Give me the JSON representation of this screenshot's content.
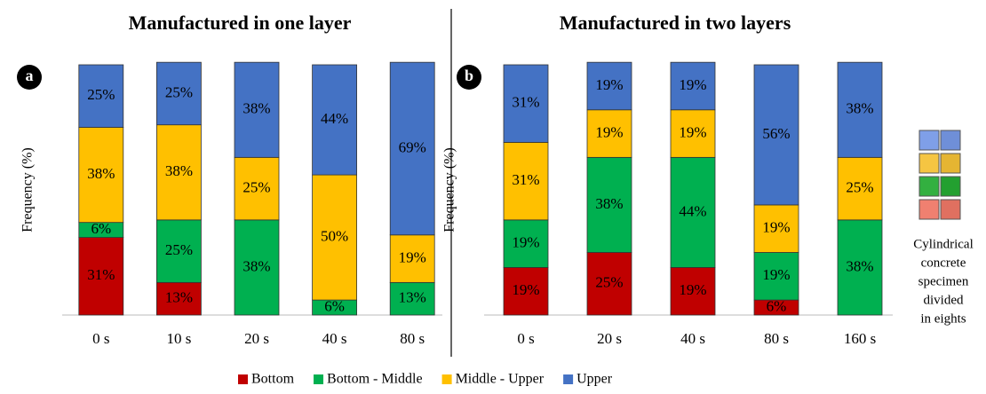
{
  "chart_data": [
    {
      "type": "stacked-bar",
      "panel_label": "a",
      "title": "Manufactured in one layer",
      "y_label": "Frequency  (%)",
      "categories": [
        "0 s",
        "10 s",
        "20 s",
        "40 s",
        "80 s"
      ],
      "ylim": [
        0,
        100
      ],
      "series": [
        {
          "name": "Bottom",
          "color": "#c00000",
          "values": [
            31,
            13,
            0,
            0,
            0
          ],
          "value_labels": [
            "31%",
            "13%",
            null,
            null,
            null
          ]
        },
        {
          "name": "Bottom - Middle",
          "color": "#00b050",
          "values": [
            6,
            25,
            38,
            6,
            13
          ],
          "value_labels": [
            "6%",
            "25%",
            "38%",
            "6%",
            "13%"
          ]
        },
        {
          "name": "Middle - Upper",
          "color": "#ffc000",
          "values": [
            38,
            38,
            25,
            50,
            19
          ],
          "value_labels": [
            "38%",
            "38%",
            "25%",
            "50%",
            "19%"
          ]
        },
        {
          "name": "Upper",
          "color": "#4472c4",
          "values": [
            25,
            25,
            38,
            44,
            69
          ],
          "value_labels": [
            "25%",
            "25%",
            "38%",
            "44%",
            "69%"
          ]
        }
      ]
    },
    {
      "type": "stacked-bar",
      "panel_label": "b",
      "title": "Manufactured in two layers",
      "y_label": "Frequency  (%)",
      "categories": [
        "0 s",
        "20 s",
        "40 s",
        "80 s",
        "160 s"
      ],
      "ylim": [
        0,
        100
      ],
      "series": [
        {
          "name": "Bottom",
          "color": "#c00000",
          "values": [
            19,
            25,
            19,
            6,
            0
          ],
          "value_labels": [
            "19%",
            "25%",
            "19%",
            "6%",
            null
          ]
        },
        {
          "name": "Bottom - Middle",
          "color": "#00b050",
          "values": [
            19,
            38,
            44,
            19,
            38
          ],
          "value_labels": [
            "19%",
            "38%",
            "44%",
            "19%",
            "38%"
          ]
        },
        {
          "name": "Middle - Upper",
          "color": "#ffc000",
          "values": [
            31,
            19,
            19,
            19,
            25
          ],
          "value_labels": [
            "31%",
            "19%",
            "19%",
            "19%",
            "25%"
          ]
        },
        {
          "name": "Upper",
          "color": "#4472c4",
          "values": [
            31,
            19,
            19,
            56,
            38
          ],
          "value_labels": [
            "31%",
            "19%",
            "19%",
            "56%",
            "38%"
          ]
        }
      ]
    }
  ],
  "side_note": [
    "Cylindrical",
    "concrete",
    "specimen",
    "divided",
    "in eights"
  ]
}
